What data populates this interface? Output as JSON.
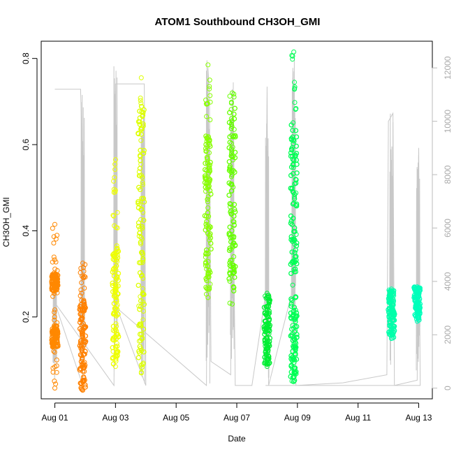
{
  "chart_data": {
    "type": "scatter",
    "title": "ATOM1 Southbound CH3OH_GMI",
    "xlabel": "Date",
    "ylabel": "CH3OH_GMI",
    "x_tick_labels": [
      "Aug 01",
      "Aug 03",
      "Aug 05",
      "Aug 07",
      "Aug 09",
      "Aug 11",
      "Aug 13"
    ],
    "x_tick_days": [
      1,
      3,
      5,
      7,
      9,
      11,
      13
    ],
    "xlim_days": [
      0.55,
      13.45
    ],
    "ylim": [
      0.01,
      0.84
    ],
    "y_ticks": [
      0.2,
      0.4,
      0.6,
      0.8
    ],
    "y_tick_labels": [
      "0.2",
      "0.4",
      "0.6",
      "0.8"
    ],
    "y2lim": [
      -400,
      13000
    ],
    "y2_ticks": [
      0,
      2000,
      4000,
      6000,
      8000,
      10000,
      12000
    ],
    "y2_tick_labels": [
      "0",
      "2000",
      "4000",
      "6000",
      "8000",
      "10000",
      "12000"
    ],
    "y2_color": "#bbbbbb",
    "grid": false,
    "marker": "open-circle",
    "series": [
      {
        "color": "#ff8800",
        "x_day": 1.0,
        "ymin": 0.035,
        "ymax": 0.415,
        "dense": [
          [
            0.13,
            0.18
          ],
          [
            0.26,
            0.3
          ]
        ]
      },
      {
        "color": "#ff8000",
        "x_day": 1.92,
        "ymin": 0.03,
        "ymax": 0.325,
        "dense": [
          [
            0.03,
            0.24
          ]
        ]
      },
      {
        "color": "#eeff00",
        "x_day": 3.0,
        "ymin": 0.085,
        "ymax": 0.565,
        "dense": [
          [
            0.1,
            0.36
          ]
        ]
      },
      {
        "color": "#ddff00",
        "x_day": 3.85,
        "ymin": 0.07,
        "ymax": 0.755,
        "dense": [
          [
            0.07,
            0.7
          ]
        ]
      },
      {
        "color": "#88ff00",
        "x_day": 6.05,
        "ymin": 0.245,
        "ymax": 0.785,
        "dense": [
          [
            0.26,
            0.62
          ]
        ]
      },
      {
        "color": "#66ff00",
        "x_day": 6.85,
        "ymin": 0.23,
        "ymax": 0.72,
        "dense": [
          [
            0.24,
            0.7
          ]
        ]
      },
      {
        "color": "#00ee33",
        "x_day": 8.0,
        "ymin": 0.085,
        "ymax": 0.255,
        "dense": [
          [
            0.09,
            0.25
          ]
        ]
      },
      {
        "color": "#00ff55",
        "x_day": 8.88,
        "ymin": 0.05,
        "ymax": 0.815,
        "dense": [
          [
            0.05,
            0.25
          ],
          [
            0.3,
            0.65
          ]
        ]
      },
      {
        "color": "#00ffaa",
        "x_day": 12.1,
        "ymin": 0.15,
        "ymax": 0.265,
        "dense": [
          [
            0.15,
            0.26
          ]
        ]
      },
      {
        "color": "#00ffbb",
        "x_day": 12.95,
        "ymin": 0.19,
        "ymax": 0.27,
        "dense": [
          [
            0.2,
            0.27
          ]
        ]
      }
    ],
    "altitude_line": {
      "axis": "y2",
      "color": "#c8c8c8",
      "path": [
        [
          1.0,
          11200
        ],
        [
          1.85,
          11200
        ],
        [
          1.88,
          9800
        ],
        [
          1.92,
          100
        ],
        [
          1.0,
          3200
        ],
        [
          2.95,
          100
        ],
        [
          3.0,
          11400
        ],
        [
          3.05,
          11400
        ],
        [
          3.95,
          11400
        ],
        [
          4.0,
          100
        ],
        [
          3.05,
          3000
        ],
        [
          6.0,
          100
        ],
        [
          6.05,
          12000
        ],
        [
          6.1,
          11000
        ],
        [
          6.15,
          1000
        ],
        [
          6.8,
          500
        ],
        [
          6.85,
          11200
        ],
        [
          6.95,
          100
        ],
        [
          7.5,
          100
        ],
        [
          7.95,
          3500
        ],
        [
          8.0,
          11300
        ],
        [
          8.05,
          100
        ],
        [
          8.8,
          3500
        ],
        [
          8.85,
          12000
        ],
        [
          8.95,
          100
        ],
        [
          10.5,
          200
        ],
        [
          11.95,
          500
        ],
        [
          12.0,
          10000
        ],
        [
          12.15,
          10300
        ],
        [
          12.2,
          100
        ],
        [
          12.95,
          300
        ],
        [
          13.0,
          9000
        ],
        [
          13.05,
          100
        ],
        [
          13.0,
          100
        ],
        [
          7.95,
          100
        ]
      ],
      "spikes": [
        {
          "x_day": 1.0,
          "ymin": 100,
          "ymax": 4500
        },
        {
          "x_day": 1.92,
          "ymin": 100,
          "ymax": 11300
        },
        {
          "x_day": 3.0,
          "ymin": 100,
          "ymax": 12600
        },
        {
          "x_day": 3.9,
          "ymin": 100,
          "ymax": 11400
        },
        {
          "x_day": 6.05,
          "ymin": 100,
          "ymax": 12300
        },
        {
          "x_day": 6.85,
          "ymin": 100,
          "ymax": 11500
        },
        {
          "x_day": 8.0,
          "ymin": 100,
          "ymax": 11300
        },
        {
          "x_day": 8.88,
          "ymin": 100,
          "ymax": 12600
        },
        {
          "x_day": 12.1,
          "ymin": 100,
          "ymax": 10300
        },
        {
          "x_day": 12.98,
          "ymin": 100,
          "ymax": 9000
        }
      ]
    }
  }
}
